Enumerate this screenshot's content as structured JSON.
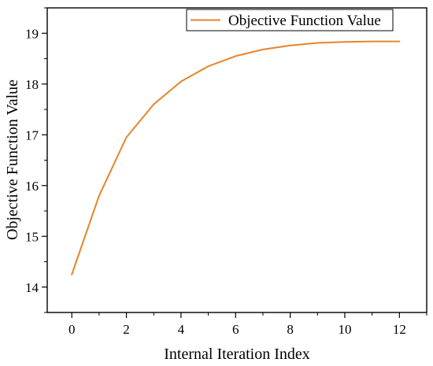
{
  "chart_data": {
    "type": "line",
    "title": "",
    "xlabel": "Internal Iteration Index",
    "ylabel": "Objective Function Value",
    "xlim": [
      -0.9,
      13.0
    ],
    "ylim": [
      13.5,
      19.5
    ],
    "xticks": [
      0,
      2,
      4,
      6,
      8,
      10,
      12
    ],
    "xtick_labels": [
      "0",
      "2",
      "4",
      "6",
      "8",
      "10",
      "12"
    ],
    "yticks": [
      14,
      15,
      16,
      17,
      18,
      19
    ],
    "ytick_labels": [
      "14",
      "15",
      "16",
      "17",
      "18",
      "19"
    ],
    "grid": false,
    "legend_position": "top-right",
    "series": [
      {
        "name": "Objective Function Value",
        "color": "#e8832a",
        "x": [
          0,
          1,
          2,
          3,
          4,
          5,
          6,
          7,
          8,
          9,
          10,
          11,
          12
        ],
        "values": [
          14.25,
          15.8,
          16.95,
          17.6,
          18.05,
          18.35,
          18.55,
          18.68,
          18.76,
          18.81,
          18.83,
          18.84,
          18.84
        ]
      }
    ]
  }
}
